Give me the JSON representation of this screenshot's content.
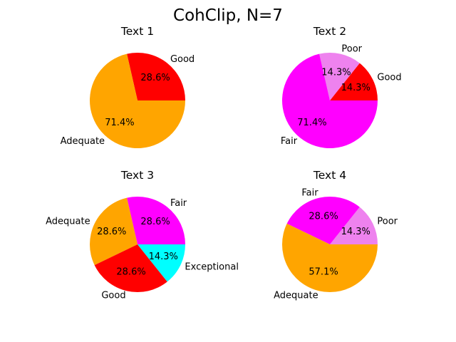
{
  "title": "CohClip, N=7",
  "chart_data": [
    {
      "type": "pie",
      "title": "Text 1",
      "labels": [
        "Good",
        "Adequate"
      ],
      "values": [
        2,
        5
      ],
      "percent_labels": [
        "28.6%",
        "71.4%"
      ],
      "colors": [
        "#ff0000",
        "#ffa500"
      ]
    },
    {
      "type": "pie",
      "title": "Text 2",
      "labels": [
        "Good",
        "Poor",
        "Fair"
      ],
      "values": [
        1,
        1,
        5
      ],
      "percent_labels": [
        "14.3%",
        "14.3%",
        "71.4%"
      ],
      "colors": [
        "#ff0000",
        "#ee82ee",
        "#ff00ff"
      ]
    },
    {
      "type": "pie",
      "title": "Text 3",
      "labels": [
        "Fair",
        "Adequate",
        "Good",
        "Exceptional"
      ],
      "values": [
        2,
        2,
        2,
        1
      ],
      "percent_labels": [
        "28.6%",
        "28.6%",
        "28.6%",
        "14.3%"
      ],
      "colors": [
        "#ff00ff",
        "#ffa500",
        "#ff0000",
        "#00ffff"
      ]
    },
    {
      "type": "pie",
      "title": "Text 4",
      "labels": [
        "Poor",
        "Fair",
        "Adequate"
      ],
      "values": [
        1,
        2,
        4
      ],
      "percent_labels": [
        "14.3%",
        "28.6%",
        "57.1%"
      ],
      "colors": [
        "#ee82ee",
        "#ff00ff",
        "#ffa500"
      ]
    }
  ]
}
